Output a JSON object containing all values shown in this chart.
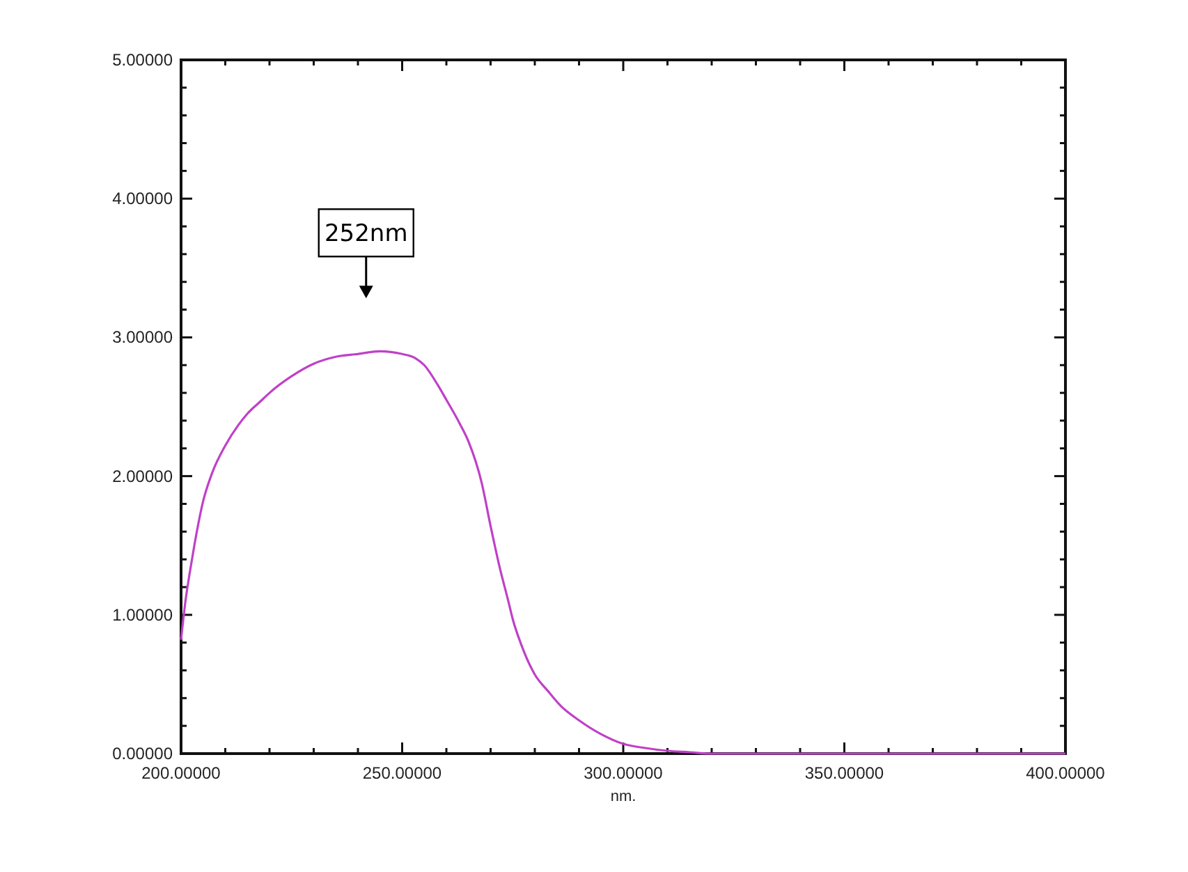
{
  "chart_data": {
    "type": "line",
    "xlabel": "nm.",
    "x": [
      200,
      201,
      202,
      203,
      205,
      207,
      210,
      213,
      215,
      218,
      220,
      225,
      230,
      235,
      240,
      245,
      250,
      253,
      255,
      258,
      260,
      263,
      265,
      268,
      270,
      272,
      274,
      275,
      277,
      280,
      283,
      286,
      290,
      295,
      300,
      305,
      310,
      315,
      320,
      330,
      350,
      370,
      400
    ],
    "series": [
      {
        "color": "#c040c8",
        "values": [
          0.82,
          1.1,
          1.31,
          1.5,
          1.82,
          2.02,
          2.22,
          2.37,
          2.45,
          2.54,
          2.6,
          2.72,
          2.81,
          2.86,
          2.88,
          2.9,
          2.88,
          2.85,
          2.8,
          2.66,
          2.55,
          2.38,
          2.25,
          1.95,
          1.64,
          1.35,
          1.1,
          0.97,
          0.78,
          0.57,
          0.45,
          0.34,
          0.24,
          0.14,
          0.07,
          0.04,
          0.02,
          0.01,
          0.0,
          0.0,
          0.0,
          0.0,
          0.0
        ]
      }
    ],
    "xlim": [
      200,
      400
    ],
    "ylim": [
      0,
      5
    ],
    "xticks": [
      {
        "value": 200,
        "label": "200.00000"
      },
      {
        "value": 210,
        "label": null
      },
      {
        "value": 220,
        "label": null
      },
      {
        "value": 230,
        "label": null
      },
      {
        "value": 240,
        "label": null
      },
      {
        "value": 250,
        "label": "250.00000"
      },
      {
        "value": 260,
        "label": null
      },
      {
        "value": 270,
        "label": null
      },
      {
        "value": 280,
        "label": null
      },
      {
        "value": 290,
        "label": null
      },
      {
        "value": 300,
        "label": "300.00000"
      },
      {
        "value": 310,
        "label": null
      },
      {
        "value": 320,
        "label": null
      },
      {
        "value": 330,
        "label": null
      },
      {
        "value": 340,
        "label": null
      },
      {
        "value": 350,
        "label": "350.00000"
      },
      {
        "value": 360,
        "label": null
      },
      {
        "value": 370,
        "label": null
      },
      {
        "value": 380,
        "label": null
      },
      {
        "value": 390,
        "label": null
      },
      {
        "value": 400,
        "label": "400.00000"
      }
    ],
    "yticks": [
      {
        "value": 0,
        "label": "0.00000"
      },
      {
        "value": 0.2,
        "label": null
      },
      {
        "value": 0.4,
        "label": null
      },
      {
        "value": 0.6,
        "label": null
      },
      {
        "value": 0.8,
        "label": null
      },
      {
        "value": 1,
        "label": "1.00000"
      },
      {
        "value": 1.2,
        "label": null
      },
      {
        "value": 1.4,
        "label": null
      },
      {
        "value": 1.6,
        "label": null
      },
      {
        "value": 1.8,
        "label": null
      },
      {
        "value": 2,
        "label": "2.00000"
      },
      {
        "value": 2.2,
        "label": null
      },
      {
        "value": 2.4,
        "label": null
      },
      {
        "value": 2.6,
        "label": null
      },
      {
        "value": 2.8,
        "label": null
      },
      {
        "value": 3,
        "label": "3.00000"
      },
      {
        "value": 3.2,
        "label": null
      },
      {
        "value": 3.4,
        "label": null
      },
      {
        "value": 3.6,
        "label": null
      },
      {
        "value": 3.8,
        "label": null
      },
      {
        "value": 4,
        "label": "4.00000"
      },
      {
        "value": 4.2,
        "label": null
      },
      {
        "value": 4.4,
        "label": null
      },
      {
        "value": 4.6,
        "label": null
      },
      {
        "value": 4.8,
        "label": null
      },
      {
        "value": 5,
        "label": "5.00000"
      }
    ],
    "annotations": [
      "252nm"
    ],
    "grid": false
  }
}
